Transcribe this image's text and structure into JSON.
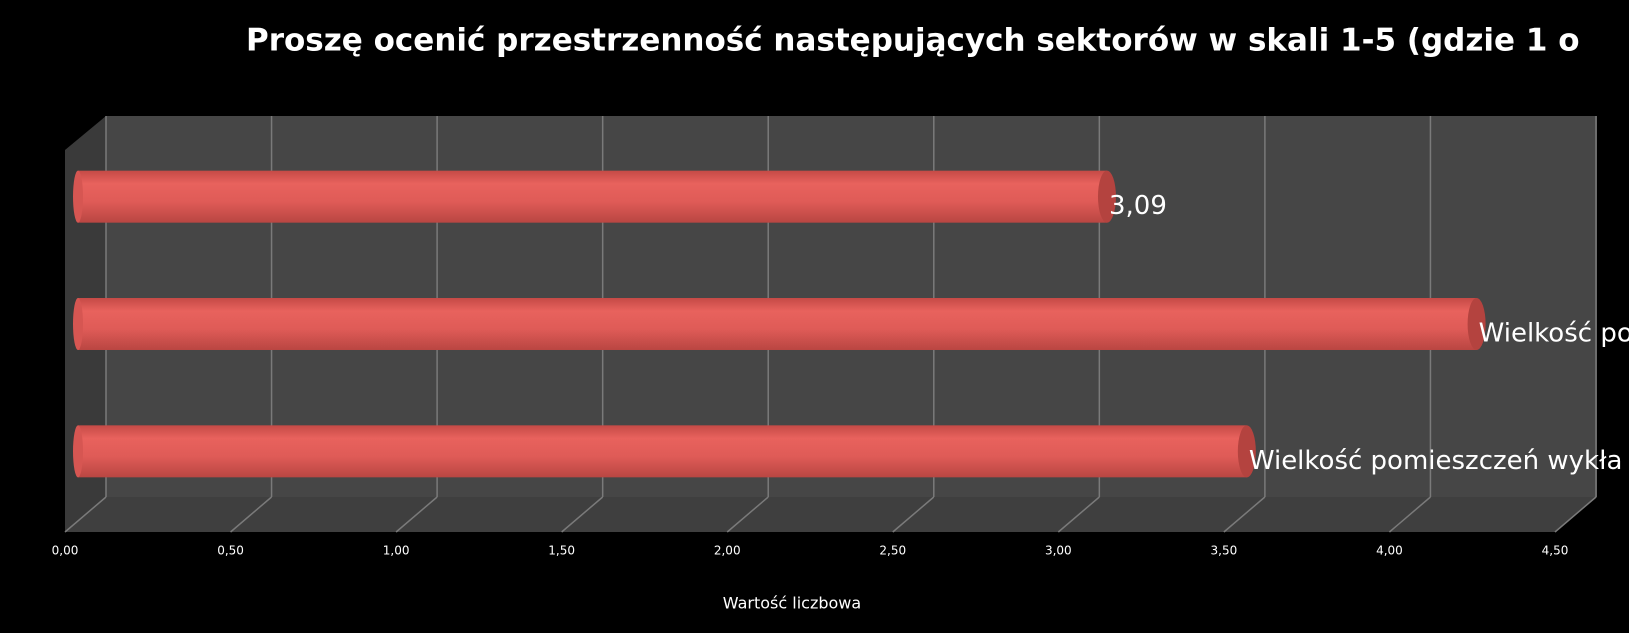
{
  "chart_data": {
    "type": "bar",
    "orientation": "horizontal",
    "title": "Proszę ocenić przestrzenność następujących sektorów w skali 1-5 (gdzie 1 o",
    "x_label": "Wartość  liczbowa",
    "categories": [
      null,
      "Wielkość po",
      "Wielkość pomieszczeń wykła"
    ],
    "values": [
      3.09,
      4.2,
      3.51
    ],
    "value_labels": [
      "3,09",
      null,
      null
    ],
    "color": "#e05c58",
    "xlim": [
      0,
      4.5
    ],
    "xticks": [
      {
        "value": 0,
        "label": "0,00"
      },
      {
        "value": 0.5,
        "label": "0,50"
      },
      {
        "value": 1,
        "label": "1,00"
      },
      {
        "value": 1.5,
        "label": "1,50"
      },
      {
        "value": 2,
        "label": "2,00"
      },
      {
        "value": 2.5,
        "label": "2,50"
      },
      {
        "value": 3,
        "label": "3,00"
      },
      {
        "value": 3.5,
        "label": "3,50"
      },
      {
        "value": 4,
        "label": "4,00"
      },
      {
        "value": 4.5,
        "label": "4,50"
      }
    ],
    "grid": true
  }
}
